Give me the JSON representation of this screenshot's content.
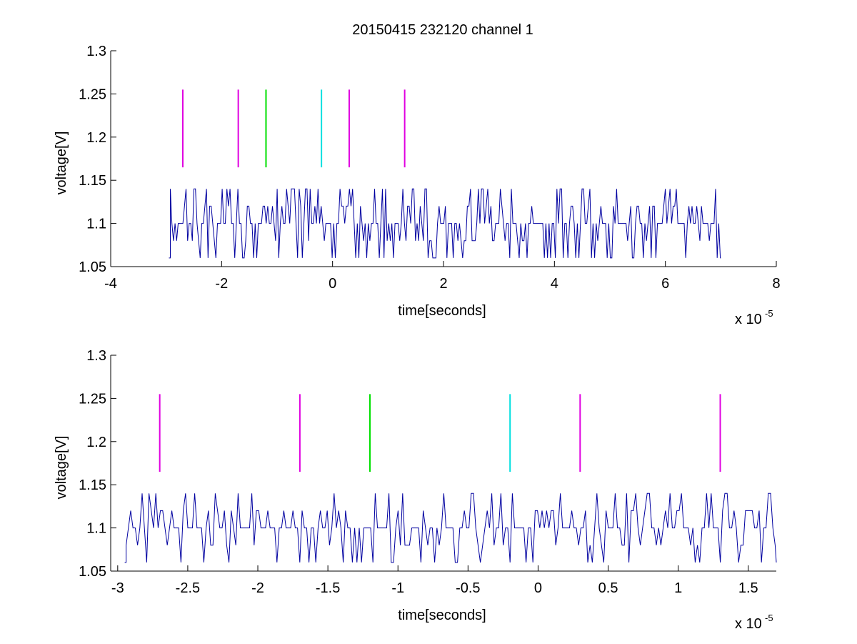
{
  "chart_data": [
    {
      "type": "line",
      "title": "20150415 232120 channel 1",
      "xlabel": "time[seconds]",
      "ylabel": "voltage[V]",
      "x_multiplier": "x 10",
      "x_multiplier_exp": "-5",
      "xlim": [
        -4,
        8
      ],
      "ylim": [
        1.05,
        1.3
      ],
      "x_ticks": [
        -4,
        -2,
        0,
        2,
        4,
        6,
        8
      ],
      "y_ticks": [
        1.05,
        1.1,
        1.15,
        1.2,
        1.25,
        1.3
      ],
      "x_tick_labels": [
        "-4",
        "-2",
        "0",
        "2",
        "4",
        "6",
        "8"
      ],
      "y_tick_labels": [
        "1.05",
        "1.1",
        "1.15",
        "1.2",
        "1.25",
        "1.3"
      ],
      "signal": {
        "color": "#0000a0",
        "x_range": [
          -2.95,
          7.0
        ],
        "levels": [
          1.06,
          1.08,
          1.1,
          1.12,
          1.14
        ],
        "baseline": 1.1
      },
      "markers": [
        {
          "x": -2.7,
          "y_range": [
            1.165,
            1.255
          ],
          "color": "#e000e0"
        },
        {
          "x": -1.7,
          "y_range": [
            1.165,
            1.255
          ],
          "color": "#e000e0"
        },
        {
          "x": -1.2,
          "y_range": [
            1.165,
            1.255
          ],
          "color": "#00e000"
        },
        {
          "x": -0.2,
          "y_range": [
            1.165,
            1.255
          ],
          "color": "#00e0e0"
        },
        {
          "x": 0.3,
          "y_range": [
            1.165,
            1.255
          ],
          "color": "#e000e0"
        },
        {
          "x": 1.3,
          "y_range": [
            1.165,
            1.255
          ],
          "color": "#e000e0"
        }
      ]
    },
    {
      "type": "line",
      "title": "",
      "xlabel": "time[seconds]",
      "ylabel": "voltage[V]",
      "x_multiplier": "x 10",
      "x_multiplier_exp": "-5",
      "xlim": [
        -3.05,
        1.7
      ],
      "ylim": [
        1.05,
        1.3
      ],
      "x_ticks": [
        -3,
        -2.5,
        -2,
        -1.5,
        -1,
        -0.5,
        0,
        0.5,
        1,
        1.5
      ],
      "y_ticks": [
        1.05,
        1.1,
        1.15,
        1.2,
        1.25,
        1.3
      ],
      "x_tick_labels": [
        "-3",
        "-2.5",
        "-2",
        "-1.5",
        "-1",
        "-0.5",
        "0",
        "0.5",
        "1",
        "1.5"
      ],
      "y_tick_labels": [
        "1.05",
        "1.1",
        "1.15",
        "1.2",
        "1.25",
        "1.3"
      ],
      "signal": {
        "color": "#0000a0",
        "x_range": [
          -2.95,
          1.7
        ],
        "levels": [
          1.06,
          1.08,
          1.1,
          1.12,
          1.14
        ],
        "baseline": 1.1
      },
      "markers": [
        {
          "x": -2.7,
          "y_range": [
            1.165,
            1.255
          ],
          "color": "#e000e0"
        },
        {
          "x": -1.7,
          "y_range": [
            1.165,
            1.255
          ],
          "color": "#e000e0"
        },
        {
          "x": -1.2,
          "y_range": [
            1.165,
            1.255
          ],
          "color": "#00e000"
        },
        {
          "x": -0.2,
          "y_range": [
            1.165,
            1.255
          ],
          "color": "#00e0e0"
        },
        {
          "x": 0.3,
          "y_range": [
            1.165,
            1.255
          ],
          "color": "#e000e0"
        },
        {
          "x": 1.3,
          "y_range": [
            1.165,
            1.255
          ],
          "color": "#e000e0"
        }
      ]
    }
  ]
}
